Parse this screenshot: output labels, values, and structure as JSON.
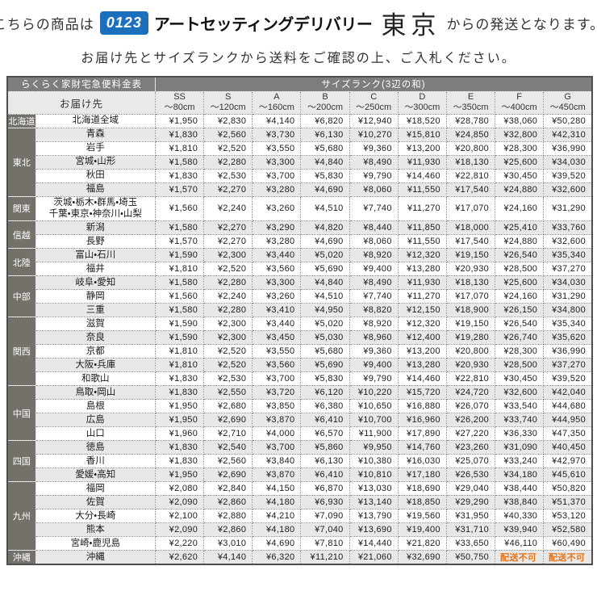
{
  "announcement": {
    "prefix": "こちらの商品は",
    "logo_number": "0123",
    "logo_brand": "アートセッティングデリバリー",
    "logo_city": "東京",
    "suffix": "からの発送となります。",
    "instruction": "お届け先とサイズランクから送料をご確認の上、ご入札ください。"
  },
  "colors": {
    "accent_blue": "#1b6fbc",
    "header_gray": "#7d7d7b",
    "region_gray": "#74706a",
    "stripe_gray": "#e8e8e8",
    "unavailable_orange": "#e97312"
  },
  "table": {
    "title": "らくらく家財宅急便料金表",
    "size_rank_header": "サイズランク(3辺の和)",
    "destination_header": "お届け先",
    "unavailable_label": "配送不可",
    "columns": [
      {
        "rank": "SS",
        "size": "〜80cm"
      },
      {
        "rank": "S",
        "size": "〜120cm"
      },
      {
        "rank": "A",
        "size": "〜160cm"
      },
      {
        "rank": "B",
        "size": "〜200cm"
      },
      {
        "rank": "C",
        "size": "〜250cm"
      },
      {
        "rank": "D",
        "size": "〜300cm"
      },
      {
        "rank": "E",
        "size": "〜350cm"
      },
      {
        "rank": "F",
        "size": "〜400cm"
      },
      {
        "rank": "G",
        "size": "〜450cm"
      }
    ],
    "regions": [
      {
        "name": "北海道",
        "rows": [
          {
            "destination": "北海道全域",
            "prices": [
              "¥1,950",
              "¥2,830",
              "¥4,140",
              "¥6,820",
              "¥12,940",
              "¥18,520",
              "¥28,780",
              "¥38,060",
              "¥50,280"
            ]
          }
        ]
      },
      {
        "name": "東北",
        "rows": [
          {
            "destination": "青森",
            "prices": [
              "¥1,830",
              "¥2,560",
              "¥3,730",
              "¥6,130",
              "¥10,270",
              "¥15,810",
              "¥24,850",
              "¥32,800",
              "¥42,310"
            ]
          },
          {
            "destination": "岩手",
            "prices": [
              "¥1,810",
              "¥2,520",
              "¥3,550",
              "¥5,680",
              "¥9,360",
              "¥13,200",
              "¥20,800",
              "¥28,300",
              "¥36,990"
            ]
          },
          {
            "destination": "宮城・山形",
            "prices": [
              "¥1,580",
              "¥2,280",
              "¥3,300",
              "¥4,840",
              "¥8,490",
              "¥11,930",
              "¥18,130",
              "¥25,600",
              "¥34,030"
            ]
          },
          {
            "destination": "秋田",
            "prices": [
              "¥1,830",
              "¥2,530",
              "¥3,700",
              "¥5,830",
              "¥9,790",
              "¥14,460",
              "¥22,810",
              "¥30,450",
              "¥39,520"
            ]
          },
          {
            "destination": "福島",
            "prices": [
              "¥1,570",
              "¥2,270",
              "¥3,280",
              "¥4,690",
              "¥8,060",
              "¥11,550",
              "¥17,540",
              "¥24,880",
              "¥32,600"
            ]
          }
        ]
      },
      {
        "name": "関東",
        "rows": [
          {
            "destination": "茨城・栃木・群馬・埼玉\n千葉・東京・神奈川・山梨",
            "prices": [
              "¥1,560",
              "¥2,240",
              "¥3,260",
              "¥4,510",
              "¥7,740",
              "¥11,270",
              "¥17,070",
              "¥24,160",
              "¥31,290"
            ]
          }
        ]
      },
      {
        "name": "信越",
        "rows": [
          {
            "destination": "新潟",
            "prices": [
              "¥1,580",
              "¥2,270",
              "¥3,290",
              "¥4,820",
              "¥8,440",
              "¥11,850",
              "¥18,000",
              "¥25,410",
              "¥33,760"
            ]
          },
          {
            "destination": "長野",
            "prices": [
              "¥1,570",
              "¥2,270",
              "¥3,280",
              "¥4,690",
              "¥8,060",
              "¥11,550",
              "¥17,540",
              "¥24,880",
              "¥32,600"
            ]
          }
        ]
      },
      {
        "name": "北陸",
        "rows": [
          {
            "destination": "富山・石川",
            "prices": [
              "¥1,590",
              "¥2,300",
              "¥3,440",
              "¥5,020",
              "¥8,920",
              "¥12,320",
              "¥19,150",
              "¥26,540",
              "¥35,340"
            ]
          },
          {
            "destination": "福井",
            "prices": [
              "¥1,810",
              "¥2,520",
              "¥3,560",
              "¥5,690",
              "¥9,400",
              "¥13,280",
              "¥20,930",
              "¥28,500",
              "¥37,270"
            ]
          }
        ]
      },
      {
        "name": "中部",
        "rows": [
          {
            "destination": "岐阜・愛知",
            "prices": [
              "¥1,580",
              "¥2,280",
              "¥3,300",
              "¥4,840",
              "¥8,490",
              "¥11,930",
              "¥18,130",
              "¥25,600",
              "¥34,030"
            ]
          },
          {
            "destination": "静岡",
            "prices": [
              "¥1,560",
              "¥2,240",
              "¥3,260",
              "¥4,510",
              "¥7,740",
              "¥11,270",
              "¥17,070",
              "¥24,160",
              "¥31,290"
            ]
          },
          {
            "destination": "三重",
            "prices": [
              "¥1,580",
              "¥2,280",
              "¥3,410",
              "¥4,950",
              "¥8,820",
              "¥12,150",
              "¥18,900",
              "¥26,150",
              "¥34,800"
            ]
          }
        ]
      },
      {
        "name": "関西",
        "rows": [
          {
            "destination": "滋賀",
            "prices": [
              "¥1,590",
              "¥2,300",
              "¥3,440",
              "¥5,020",
              "¥8,920",
              "¥12,320",
              "¥19,150",
              "¥26,540",
              "¥35,340"
            ]
          },
          {
            "destination": "奈良",
            "prices": [
              "¥1,590",
              "¥2,300",
              "¥3,450",
              "¥5,030",
              "¥8,960",
              "¥12,400",
              "¥19,280",
              "¥26,740",
              "¥35,620"
            ]
          },
          {
            "destination": "京都",
            "prices": [
              "¥1,810",
              "¥2,520",
              "¥3,550",
              "¥5,680",
              "¥9,360",
              "¥13,200",
              "¥20,800",
              "¥28,300",
              "¥36,990"
            ]
          },
          {
            "destination": "大阪・兵庫",
            "prices": [
              "¥1,810",
              "¥2,520",
              "¥3,560",
              "¥5,690",
              "¥9,400",
              "¥13,280",
              "¥20,930",
              "¥28,500",
              "¥37,270"
            ]
          },
          {
            "destination": "和歌山",
            "prices": [
              "¥1,830",
              "¥2,530",
              "¥3,700",
              "¥5,830",
              "¥9,790",
              "¥14,460",
              "¥22,810",
              "¥30,450",
              "¥39,520"
            ]
          }
        ]
      },
      {
        "name": "中国",
        "rows": [
          {
            "destination": "鳥取・岡山",
            "prices": [
              "¥1,830",
              "¥2,550",
              "¥3,720",
              "¥6,120",
              "¥10,220",
              "¥15,720",
              "¥24,720",
              "¥32,600",
              "¥42,040"
            ]
          },
          {
            "destination": "島根",
            "prices": [
              "¥1,950",
              "¥2,680",
              "¥3,850",
              "¥6,380",
              "¥10,650",
              "¥16,880",
              "¥26,070",
              "¥33,540",
              "¥44,680"
            ]
          },
          {
            "destination": "広島",
            "prices": [
              "¥1,950",
              "¥2,690",
              "¥3,870",
              "¥6,410",
              "¥10,700",
              "¥16,960",
              "¥26,200",
              "¥33,740",
              "¥44,950"
            ]
          },
          {
            "destination": "山口",
            "prices": [
              "¥1,960",
              "¥2,710",
              "¥4,000",
              "¥6,570",
              "¥11,900",
              "¥17,890",
              "¥27,220",
              "¥36,330",
              "¥47,350"
            ]
          }
        ]
      },
      {
        "name": "四国",
        "rows": [
          {
            "destination": "徳島",
            "prices": [
              "¥1,830",
              "¥2,540",
              "¥3,700",
              "¥5,860",
              "¥9,950",
              "¥14,760",
              "¥23,260",
              "¥31,090",
              "¥40,450"
            ]
          },
          {
            "destination": "香川",
            "prices": [
              "¥1,830",
              "¥2,560",
              "¥3,840",
              "¥6,130",
              "¥10,380",
              "¥16,030",
              "¥25,070",
              "¥33,240",
              "¥42,970"
            ]
          },
          {
            "destination": "愛媛・高知",
            "prices": [
              "¥1,950",
              "¥2,690",
              "¥3,870",
              "¥6,410",
              "¥10,810",
              "¥17,180",
              "¥26,530",
              "¥34,180",
              "¥45,610"
            ]
          }
        ]
      },
      {
        "name": "九州",
        "rows": [
          {
            "destination": "福岡",
            "prices": [
              "¥2,080",
              "¥2,840",
              "¥4,150",
              "¥6,870",
              "¥13,030",
              "¥18,690",
              "¥29,040",
              "¥38,440",
              "¥50,820"
            ]
          },
          {
            "destination": "佐賀",
            "prices": [
              "¥2,090",
              "¥2,860",
              "¥4,180",
              "¥6,930",
              "¥13,140",
              "¥18,850",
              "¥29,290",
              "¥38,840",
              "¥51,370"
            ]
          },
          {
            "destination": "大分・長崎",
            "prices": [
              "¥2,100",
              "¥2,880",
              "¥4,210",
              "¥7,090",
              "¥13,790",
              "¥19,560",
              "¥31,950",
              "¥40,330",
              "¥53,120"
            ]
          },
          {
            "destination": "熊本",
            "prices": [
              "¥2,090",
              "¥2,860",
              "¥4,180",
              "¥7,040",
              "¥13,690",
              "¥19,400",
              "¥31,710",
              "¥39,940",
              "¥52,580"
            ]
          },
          {
            "destination": "宮崎・鹿児島",
            "prices": [
              "¥2,220",
              "¥3,010",
              "¥4,690",
              "¥7,810",
              "¥14,440",
              "¥21,820",
              "¥33,650",
              "¥46,110",
              "¥60,490"
            ]
          }
        ]
      },
      {
        "name": "沖縄",
        "rows": [
          {
            "destination": "沖縄",
            "prices": [
              "¥2,620",
              "¥4,140",
              "¥6,320",
              "¥11,210",
              "¥21,060",
              "¥32,690",
              "¥50,750",
              "配送不可",
              "配送不可"
            ]
          }
        ]
      }
    ]
  }
}
